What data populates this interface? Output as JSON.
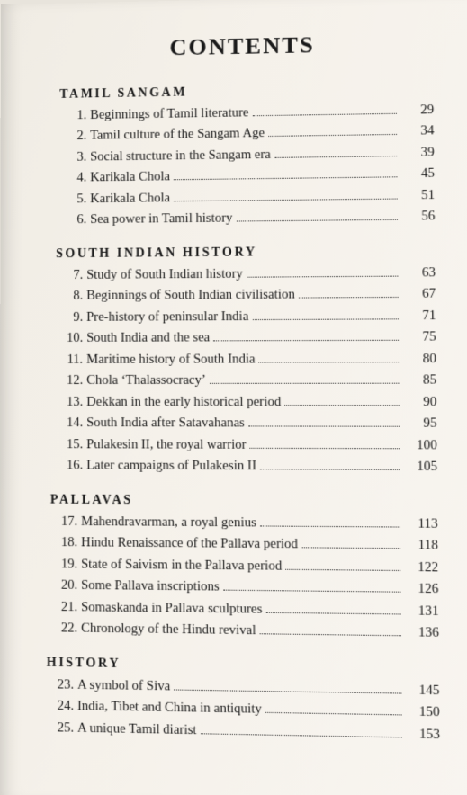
{
  "title": "CONTENTS",
  "sections": [
    {
      "heading": "TAMIL SANGAM",
      "entries": [
        {
          "n": "1.",
          "t": "Beginnings of Tamil literature",
          "p": "29"
        },
        {
          "n": "2.",
          "t": "Tamil culture of the Sangam Age",
          "p": "34"
        },
        {
          "n": "3.",
          "t": "Social structure in the Sangam era",
          "p": "39"
        },
        {
          "n": "4.",
          "t": "Karikala Chola",
          "p": "45"
        },
        {
          "n": "5.",
          "t": "Karikala Chola",
          "p": "51"
        },
        {
          "n": "6.",
          "t": "Sea power in Tamil history",
          "p": "56"
        }
      ]
    },
    {
      "heading": "SOUTH INDIAN HISTORY",
      "entries": [
        {
          "n": "7.",
          "t": "Study of South Indian history",
          "p": "63"
        },
        {
          "n": "8.",
          "t": "Beginnings of South Indian civilisation",
          "p": "67"
        },
        {
          "n": "9.",
          "t": "Pre-history of peninsular India",
          "p": "71"
        },
        {
          "n": "10.",
          "t": "South India and the sea",
          "p": "75"
        },
        {
          "n": "11.",
          "t": "Maritime history of South India",
          "p": "80"
        },
        {
          "n": "12.",
          "t": "Chola ‘Thalassocracy’",
          "p": "85"
        },
        {
          "n": "13.",
          "t": "Dekkan in the early historical period",
          "p": "90"
        },
        {
          "n": "14.",
          "t": "South India after Satavahanas",
          "p": "95"
        },
        {
          "n": "15.",
          "t": "Pulakesin II, the royal warrior",
          "p": "100"
        },
        {
          "n": "16.",
          "t": "Later campaigns of Pulakesin II",
          "p": "105"
        }
      ]
    },
    {
      "heading": "PALLAVAS",
      "entries": [
        {
          "n": "17.",
          "t": "Mahendravarman, a royal genius",
          "p": "113"
        },
        {
          "n": "18.",
          "t": "Hindu Renaissance of the Pallava period",
          "p": "118"
        },
        {
          "n": "19.",
          "t": "State of Saivism in the Pallava period",
          "p": "122"
        },
        {
          "n": "20.",
          "t": "Some Pallava inscriptions",
          "p": "126"
        },
        {
          "n": "21.",
          "t": "Somaskanda in Pallava sculptures",
          "p": "131"
        },
        {
          "n": "22.",
          "t": "Chronology of the Hindu revival",
          "p": "136"
        }
      ]
    },
    {
      "heading": "HISTORY",
      "entries": [
        {
          "n": "23.",
          "t": "A symbol of Siva",
          "p": "145"
        },
        {
          "n": "24.",
          "t": "India, Tibet and China in antiquity",
          "p": "150"
        },
        {
          "n": "25.",
          "t": "A unique Tamil diarist",
          "p": "153"
        }
      ]
    }
  ]
}
